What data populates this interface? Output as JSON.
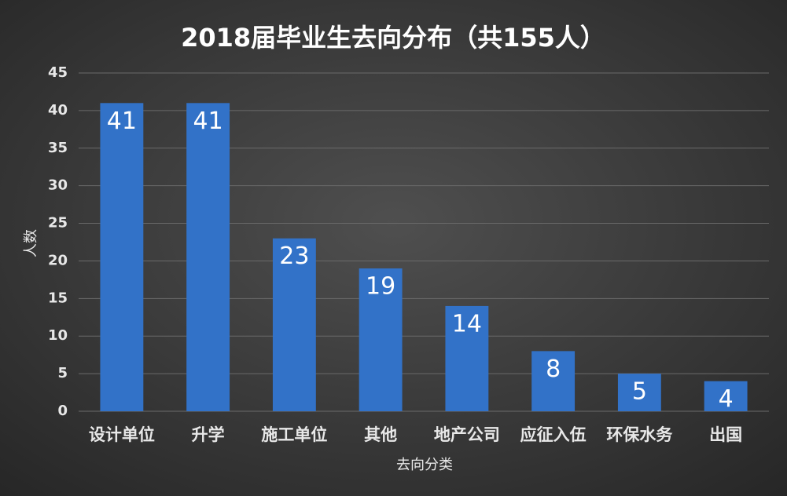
{
  "chart_data": {
    "type": "bar",
    "title": "2018届毕业生去向分布（共155人）",
    "x_label": "去向分类",
    "y_label": "人数",
    "categories": [
      "设计单位",
      "升学",
      "施工单位",
      "其他",
      "地产公司",
      "应征入伍",
      "环保水务",
      "出国"
    ],
    "values": [
      41,
      41,
      23,
      19,
      14,
      8,
      5,
      4
    ],
    "color": "#3272c8",
    "ylim": [
      0,
      45
    ],
    "yticks": [
      0,
      5,
      10,
      15,
      20,
      25,
      30,
      35,
      40,
      45
    ],
    "grid": true
  }
}
